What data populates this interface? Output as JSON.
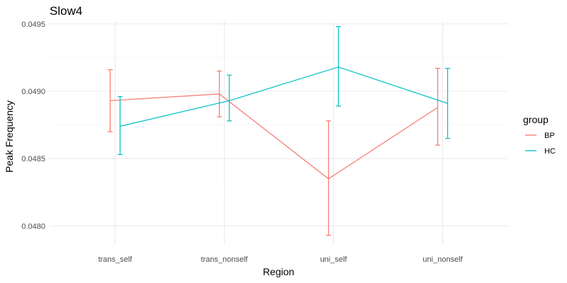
{
  "chart_data": {
    "type": "line",
    "title": "Slow4",
    "xlabel": "Region",
    "ylabel": "Peak Frequency",
    "categories": [
      "trans_self",
      "trans_nonself",
      "uni_self",
      "uni_nonself"
    ],
    "ylim": [
      0.04786,
      0.04952
    ],
    "yticks": [
      0.048,
      0.0485,
      0.049,
      0.0495
    ],
    "ytick_labels": [
      "0.0480",
      "0.0485",
      "0.0490",
      "0.0495"
    ],
    "grid": true,
    "legend": {
      "title": "group",
      "position": "right"
    },
    "error_bars": true,
    "series": [
      {
        "name": "BP",
        "color": "#F8766D",
        "values": [
          0.04893,
          0.04898,
          0.04835,
          0.04888
        ],
        "lower": [
          0.0487,
          0.04881,
          0.04793,
          0.0486
        ],
        "upper": [
          0.04916,
          0.04915,
          0.04878,
          0.04917
        ]
      },
      {
        "name": "HC",
        "color": "#00BFC4",
        "values": [
          0.04874,
          0.04893,
          0.04918,
          0.04891
        ],
        "lower": [
          0.04853,
          0.04878,
          0.04889,
          0.04865
        ],
        "upper": [
          0.04896,
          0.04912,
          0.04948,
          0.04917
        ]
      }
    ]
  }
}
